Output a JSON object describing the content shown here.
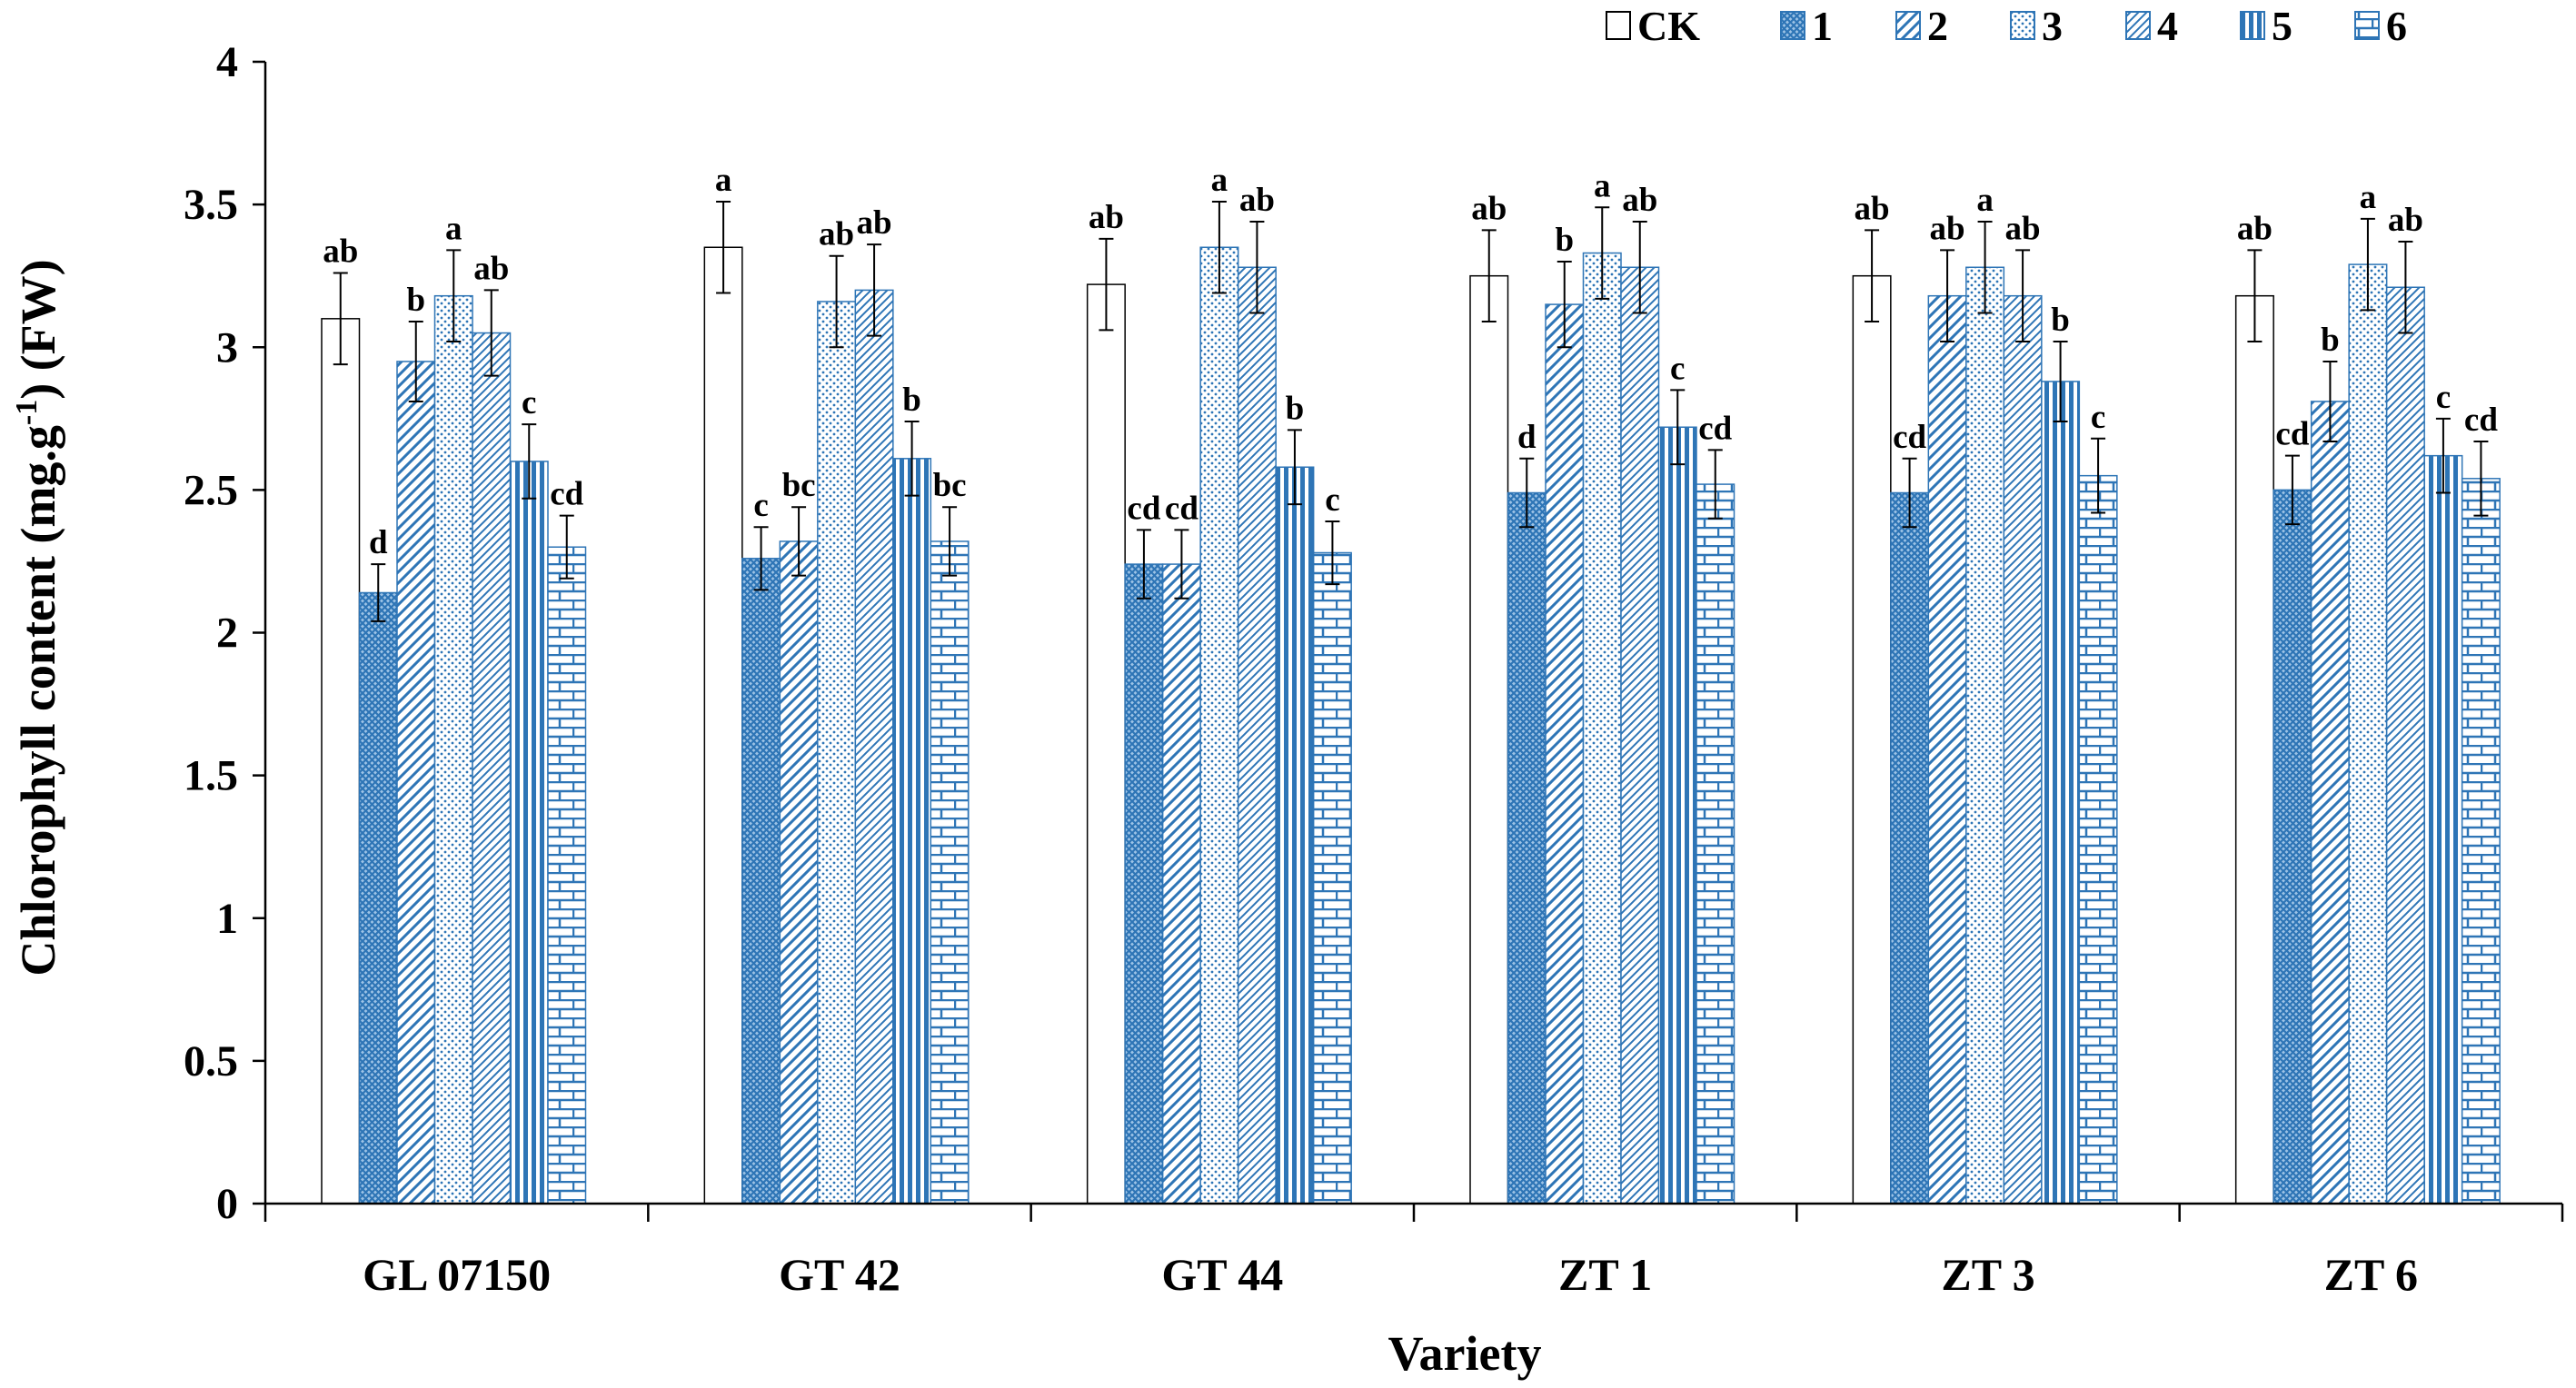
{
  "chart_data": {
    "type": "bar",
    "title": "",
    "xlabel": "Variety",
    "ylabel": "Chlorophyll content (mg.g",
    "ylabel_sup": "-1",
    "ylabel_end": ") (FW)",
    "ylim": [
      0,
      4
    ],
    "yticks": [
      "0",
      "0.5",
      "1",
      "1.5",
      "2",
      "2.5",
      "3",
      "3.5",
      "4"
    ],
    "legend_position": "top-right",
    "categories": [
      "GL 07150",
      "GT 42",
      "GT 44",
      "ZT 1",
      "ZT 3",
      "ZT 6"
    ],
    "series": [
      {
        "name": "CK",
        "pattern": "blank",
        "values": [
          3.1,
          3.35,
          3.22,
          3.25,
          3.25,
          3.18
        ],
        "errors": [
          0.16,
          0.16,
          0.16,
          0.16,
          0.16,
          0.16
        ],
        "labels": [
          "ab",
          "a",
          "ab",
          "ab",
          "ab",
          "ab"
        ]
      },
      {
        "name": "1",
        "pattern": "grid",
        "values": [
          2.14,
          2.26,
          2.24,
          2.49,
          2.49,
          2.5
        ],
        "errors": [
          0.1,
          0.11,
          0.12,
          0.12,
          0.12,
          0.12
        ],
        "labels": [
          "d",
          "c",
          "cd",
          "d",
          "cd",
          "cd"
        ]
      },
      {
        "name": "2",
        "pattern": "diagonal",
        "values": [
          2.95,
          2.32,
          2.24,
          3.15,
          3.18,
          2.81
        ],
        "errors": [
          0.14,
          0.12,
          0.12,
          0.15,
          0.16,
          0.14
        ],
        "labels": [
          "b",
          "bc",
          "cd",
          "b",
          "ab",
          "b"
        ]
      },
      {
        "name": "3",
        "pattern": "dots",
        "values": [
          3.18,
          3.16,
          3.35,
          3.33,
          3.28,
          3.29
        ],
        "errors": [
          0.16,
          0.16,
          0.16,
          0.16,
          0.16,
          0.16
        ],
        "labels": [
          "a",
          "ab",
          "a",
          "a",
          "a",
          "a"
        ]
      },
      {
        "name": "4",
        "pattern": "diagonal-dense",
        "values": [
          3.05,
          3.2,
          3.28,
          3.28,
          3.18,
          3.21
        ],
        "errors": [
          0.15,
          0.16,
          0.16,
          0.16,
          0.16,
          0.16
        ],
        "labels": [
          "ab",
          "ab",
          "ab",
          "ab",
          "ab",
          "ab"
        ]
      },
      {
        "name": "5",
        "pattern": "vertical",
        "values": [
          2.6,
          2.61,
          2.58,
          2.72,
          2.88,
          2.62
        ],
        "errors": [
          0.13,
          0.13,
          0.13,
          0.13,
          0.14,
          0.13
        ],
        "labels": [
          "c",
          "b",
          "b",
          "c",
          "b",
          "c"
        ]
      },
      {
        "name": "6",
        "pattern": "brick",
        "values": [
          2.3,
          2.32,
          2.28,
          2.52,
          2.55,
          2.54
        ],
        "errors": [
          0.11,
          0.12,
          0.11,
          0.12,
          0.13,
          0.13
        ],
        "labels": [
          "cd",
          "bc",
          "c",
          "cd",
          "c",
          "cd"
        ]
      }
    ],
    "colors": {
      "fill": "#2E75B6",
      "fill_light": "#9DC3E6",
      "axis": "#000000",
      "blank": "#ffffff"
    }
  }
}
